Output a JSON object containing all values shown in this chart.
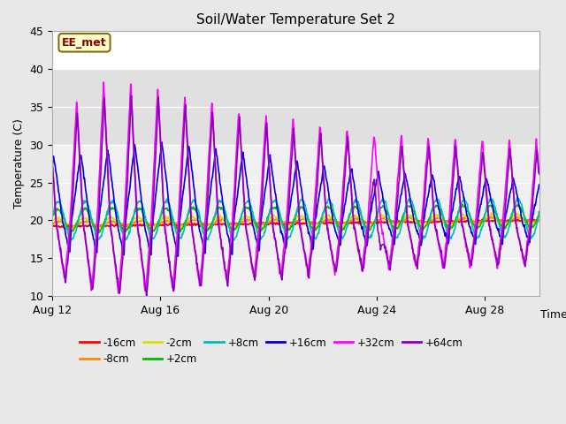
{
  "title": "Soil/Water Temperature Set 2",
  "xlabel": "Time",
  "ylabel": "Temperature (C)",
  "ylim": [
    10,
    45
  ],
  "yticks": [
    10,
    15,
    20,
    25,
    30,
    35,
    40,
    45
  ],
  "fig_bg_color": "#e8e8e8",
  "plot_bg": "#ffffff",
  "annotation_text": "EE_met",
  "annotation_box_color": "#ffffcc",
  "annotation_text_color": "#8b0000",
  "annotation_border_color": "#8b6914",
  "series": {
    "-16cm": {
      "color": "#ff0000",
      "linewidth": 1.2
    },
    "-8cm": {
      "color": "#ff8800",
      "linewidth": 1.2
    },
    "-2cm": {
      "color": "#dddd00",
      "linewidth": 1.2
    },
    "+2cm": {
      "color": "#00bb00",
      "linewidth": 1.2
    },
    "+8cm": {
      "color": "#00bbbb",
      "linewidth": 1.2
    },
    "+16cm": {
      "color": "#0000dd",
      "linewidth": 1.2
    },
    "+32cm": {
      "color": "#ff00ff",
      "linewidth": 1.2
    },
    "+64cm": {
      "color": "#8800bb",
      "linewidth": 1.2
    }
  },
  "legend_order": [
    "-16cm",
    "-8cm",
    "-2cm",
    "+2cm",
    "+8cm",
    "+16cm",
    "+32cm",
    "+64cm"
  ],
  "tick_days": [
    12,
    16,
    20,
    24,
    28
  ],
  "shaded_band": [
    30,
    40
  ],
  "shaded_band_color": "#e0e0e0"
}
